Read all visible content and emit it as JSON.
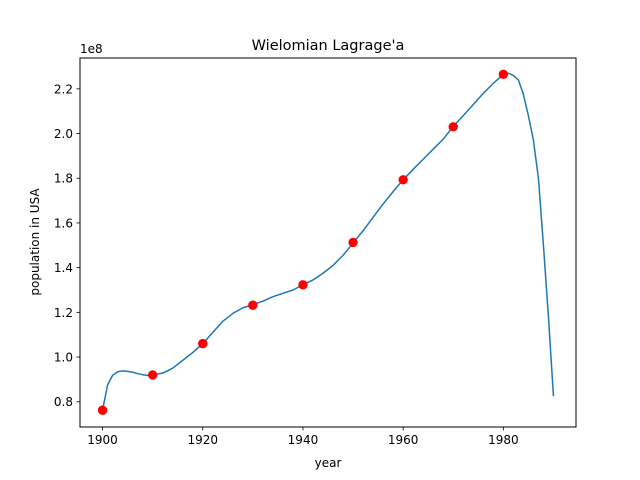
{
  "chart_data": {
    "type": "line",
    "title": "Wielomian Lagrage'a",
    "xlabel": "year",
    "ylabel": "population in USA",
    "y_offset_label": "1e8",
    "xlim": [
      1895.5,
      1994.5
    ],
    "ylim": [
      0.687,
      2.338
    ],
    "x_ticks": [
      1900,
      1920,
      1940,
      1960,
      1980
    ],
    "y_ticks": [
      0.8,
      1.0,
      1.2,
      1.4,
      1.6,
      1.8,
      2.0,
      2.2
    ],
    "grid": false,
    "series": [
      {
        "kind": "line",
        "color": "#1f77b4",
        "x": [
          1900,
          1901,
          1902,
          1903,
          1904,
          1905,
          1906,
          1907,
          1908,
          1909,
          1910,
          1912,
          1914,
          1916,
          1918,
          1920,
          1922,
          1924,
          1926,
          1928,
          1930,
          1932,
          1934,
          1936,
          1938,
          1940,
          1942,
          1944,
          1946,
          1948,
          1950,
          1952,
          1954,
          1956,
          1958,
          1960,
          1962,
          1964,
          1966,
          1968,
          1970,
          1972,
          1974,
          1976,
          1978,
          1980,
          1981,
          1982,
          1983,
          1984,
          1985,
          1986,
          1987,
          1988,
          1989,
          1990
        ],
        "y": [
          0.762,
          0.875,
          0.918,
          0.934,
          0.938,
          0.936,
          0.932,
          0.926,
          0.921,
          0.918,
          0.92,
          0.928,
          0.95,
          0.985,
          1.02,
          1.06,
          1.11,
          1.16,
          1.195,
          1.22,
          1.234,
          1.25,
          1.27,
          1.285,
          1.3,
          1.323,
          1.345,
          1.375,
          1.41,
          1.455,
          1.51,
          1.565,
          1.625,
          1.685,
          1.74,
          1.793,
          1.84,
          1.885,
          1.93,
          1.975,
          2.032,
          2.08,
          2.13,
          2.18,
          2.225,
          2.265,
          2.27,
          2.26,
          2.24,
          2.175,
          2.08,
          1.97,
          1.8,
          1.5,
          1.18,
          0.825
        ]
      },
      {
        "kind": "markers",
        "color": "#ff0000",
        "x": [
          1900,
          1910,
          1920,
          1930,
          1940,
          1950,
          1960,
          1970,
          1980
        ],
        "y": [
          0.762,
          0.92,
          1.06,
          1.232,
          1.323,
          1.513,
          1.793,
          2.03,
          2.265
        ]
      }
    ]
  }
}
